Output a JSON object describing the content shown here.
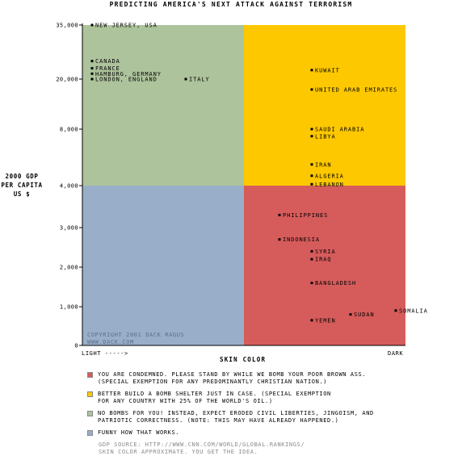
{
  "chart_data": {
    "type": "scatter",
    "title": "PREDICTING AMERICA'S NEXT ATTACK AGAINST TERRORISM",
    "ylabel": [
      "2000 GDP",
      "PER CAPITA",
      "US $"
    ],
    "xlabel": "SKIN COLOR",
    "x_low_label": "LIGHT ----->",
    "x_high_label": "DARK",
    "y_ticks": [
      "35,000",
      "20,000",
      "8,000",
      "4,000",
      "3,000",
      "2,000",
      "1,000",
      "0"
    ],
    "quadrants": [
      {
        "id": "light-rich",
        "color": "#adc39c"
      },
      {
        "id": "dark-rich",
        "color": "#fec800"
      },
      {
        "id": "light-poor",
        "color": "#99afc9"
      },
      {
        "id": "dark-poor",
        "color": "#d65c5b"
      }
    ],
    "points": [
      {
        "label": "NEW JERSEY, USA",
        "skin": 0.03,
        "gdp": 35000
      },
      {
        "label": "CANADA",
        "skin": 0.03,
        "gdp": 25000
      },
      {
        "label": "FRANCE",
        "skin": 0.03,
        "gdp": 23000
      },
      {
        "label": "HAMBURG, GERMANY",
        "skin": 0.03,
        "gdp": 21500
      },
      {
        "label": "LONDON, ENGLAND",
        "skin": 0.03,
        "gdp": 20000
      },
      {
        "label": "ITALY",
        "skin": 0.32,
        "gdp": 20000
      },
      {
        "label": "KUWAIT",
        "skin": 0.71,
        "gdp": 22500
      },
      {
        "label": "UNITED ARAB EMIRATES",
        "skin": 0.71,
        "gdp": 17500
      },
      {
        "label": "SAUDI ARABIA",
        "skin": 0.71,
        "gdp": 8000
      },
      {
        "label": "LIBYA",
        "skin": 0.71,
        "gdp": 7500
      },
      {
        "label": "IRAN",
        "skin": 0.71,
        "gdp": 5500
      },
      {
        "label": "ALGERIA",
        "skin": 0.71,
        "gdp": 4700
      },
      {
        "label": "LEBANON",
        "skin": 0.71,
        "gdp": 4100
      },
      {
        "label": "PHILIPPINES",
        "skin": 0.61,
        "gdp": 3300
      },
      {
        "label": "INDONESIA",
        "skin": 0.61,
        "gdp": 2700
      },
      {
        "label": "SYRIA",
        "skin": 0.71,
        "gdp": 2400
      },
      {
        "label": "IRAQ",
        "skin": 0.71,
        "gdp": 2200
      },
      {
        "label": "BANGLADESH",
        "skin": 0.71,
        "gdp": 1600
      },
      {
        "label": "SOMALIA",
        "skin": 0.97,
        "gdp": 900
      },
      {
        "label": "SUDAN",
        "skin": 0.83,
        "gdp": 800
      },
      {
        "label": "YEMEN",
        "skin": 0.71,
        "gdp": 650
      }
    ]
  },
  "credit": [
    "COPYRIGHT 2001 DACK RAGUS",
    "WWW.DACK.COM"
  ],
  "legend": [
    {
      "color": "#d65c5b",
      "text": "YOU ARE CONDEMNED. PLEASE STAND BY WHILE WE BOMB YOUR POOR BROWN ASS.\n(SPECIAL EXEMPTION FOR ANY PREDOMINANTLY CHRISTIAN NATION.)"
    },
    {
      "color": "#fec800",
      "text": "BETTER BUILD A BOMB SHELTER JUST IN CASE. (SPECIAL EXEMPTION\nFOR ANY COUNTRY WITH 25% OF THE WORLD'S OIL.)"
    },
    {
      "color": "#adc39c",
      "text": "NO BOMBS FOR YOU! INSTEAD, EXPECT ERODED CIVIL LIBERTIES, JINGOISM, AND\nPATRIOTIC CORRECTNESS. (NOTE: THIS MAY HAVE ALREADY HAPPENED.)"
    },
    {
      "color": "#99afc9",
      "text": "FUNNY HOW THAT WORKS."
    }
  ],
  "source": [
    "GDP SOURCE: HTTP://WWW.CNN.COM/WORLD/GLOBAL.RANKINGS/",
    "SKIN COLOR APPROXIMATE. YOU GET THE IDEA."
  ]
}
